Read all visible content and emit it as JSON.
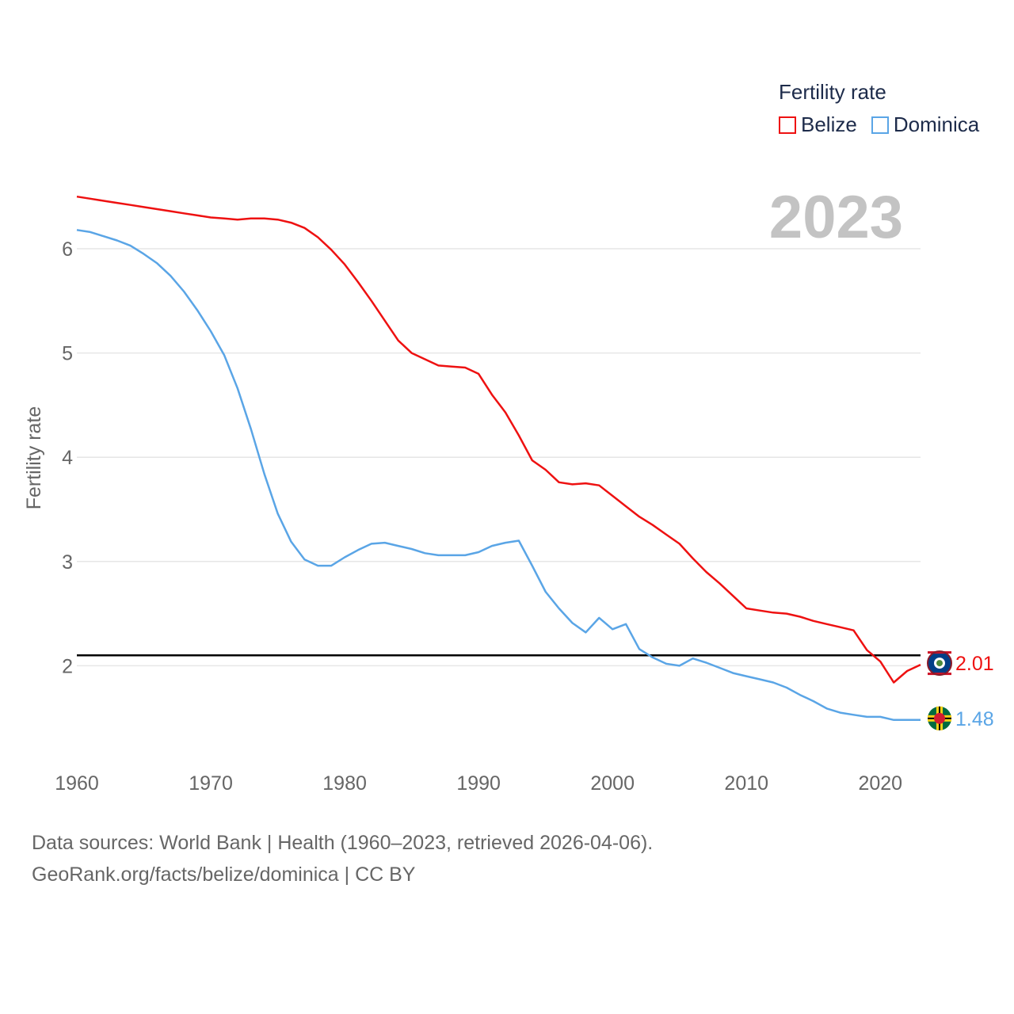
{
  "legend": {
    "title": "Fertility rate",
    "belize": "Belize",
    "dominica": "Dominica"
  },
  "year_label": "2023",
  "footer": {
    "line1": "Data sources: World Bank | Health (1960–2023, retrieved 2026-04-06).",
    "line2": "GeoRank.org/facts/belize/dominica | CC BY"
  },
  "colors": {
    "belize": "#ee1111",
    "dominica": "#5aa5e6",
    "reference": "#000000",
    "grid": "#e6e6e6",
    "axis_text": "#666666",
    "year_text": "#c3c3c3"
  },
  "chart_data": {
    "type": "line",
    "title": "",
    "xlabel": "",
    "ylabel": "Fertility rate",
    "xlim": [
      1960,
      2023
    ],
    "ylim": [
      1.0,
      6.8
    ],
    "x_ticks": [
      1960,
      1970,
      1980,
      1990,
      2000,
      2010,
      2020
    ],
    "y_ticks": [
      2,
      3,
      4,
      5,
      6
    ],
    "reference_line": 2.1,
    "x": [
      1960,
      1961,
      1962,
      1963,
      1964,
      1965,
      1966,
      1967,
      1968,
      1969,
      1970,
      1971,
      1972,
      1973,
      1974,
      1975,
      1976,
      1977,
      1978,
      1979,
      1980,
      1981,
      1982,
      1983,
      1984,
      1985,
      1986,
      1987,
      1988,
      1989,
      1990,
      1991,
      1992,
      1993,
      1994,
      1995,
      1996,
      1997,
      1998,
      1999,
      2000,
      2001,
      2002,
      2003,
      2004,
      2005,
      2006,
      2007,
      2008,
      2009,
      2010,
      2011,
      2012,
      2013,
      2014,
      2015,
      2016,
      2017,
      2018,
      2019,
      2020,
      2021,
      2022,
      2023
    ],
    "series": [
      {
        "name": "Belize",
        "end_label": "2.01",
        "values": [
          6.5,
          6.48,
          6.46,
          6.44,
          6.42,
          6.4,
          6.38,
          6.36,
          6.34,
          6.32,
          6.3,
          6.29,
          6.28,
          6.29,
          6.29,
          6.28,
          6.25,
          6.2,
          6.11,
          5.99,
          5.85,
          5.68,
          5.5,
          5.31,
          5.12,
          5.0,
          4.94,
          4.88,
          4.87,
          4.86,
          4.8,
          4.6,
          4.43,
          4.21,
          3.97,
          3.88,
          3.76,
          3.74,
          3.75,
          3.73,
          3.63,
          3.53,
          3.43,
          3.35,
          3.26,
          3.17,
          3.03,
          2.9,
          2.79,
          2.67,
          2.55,
          2.53,
          2.51,
          2.5,
          2.47,
          2.43,
          2.4,
          2.37,
          2.34,
          2.15,
          2.04,
          1.84,
          1.95,
          2.01
        ]
      },
      {
        "name": "Dominica",
        "end_label": "1.48",
        "values": [
          6.18,
          6.16,
          6.12,
          6.08,
          6.03,
          5.95,
          5.86,
          5.74,
          5.59,
          5.41,
          5.21,
          4.98,
          4.66,
          4.27,
          3.84,
          3.46,
          3.19,
          3.02,
          2.96,
          2.96,
          3.04,
          3.11,
          3.17,
          3.18,
          3.15,
          3.12,
          3.08,
          3.06,
          3.06,
          3.06,
          3.09,
          3.15,
          3.18,
          3.2,
          2.96,
          2.71,
          2.55,
          2.41,
          2.32,
          2.46,
          2.35,
          2.4,
          2.16,
          2.08,
          2.02,
          2.0,
          2.07,
          2.03,
          1.98,
          1.93,
          1.9,
          1.87,
          1.84,
          1.79,
          1.72,
          1.66,
          1.59,
          1.55,
          1.53,
          1.51,
          1.51,
          1.48,
          1.48,
          1.48
        ]
      }
    ]
  }
}
